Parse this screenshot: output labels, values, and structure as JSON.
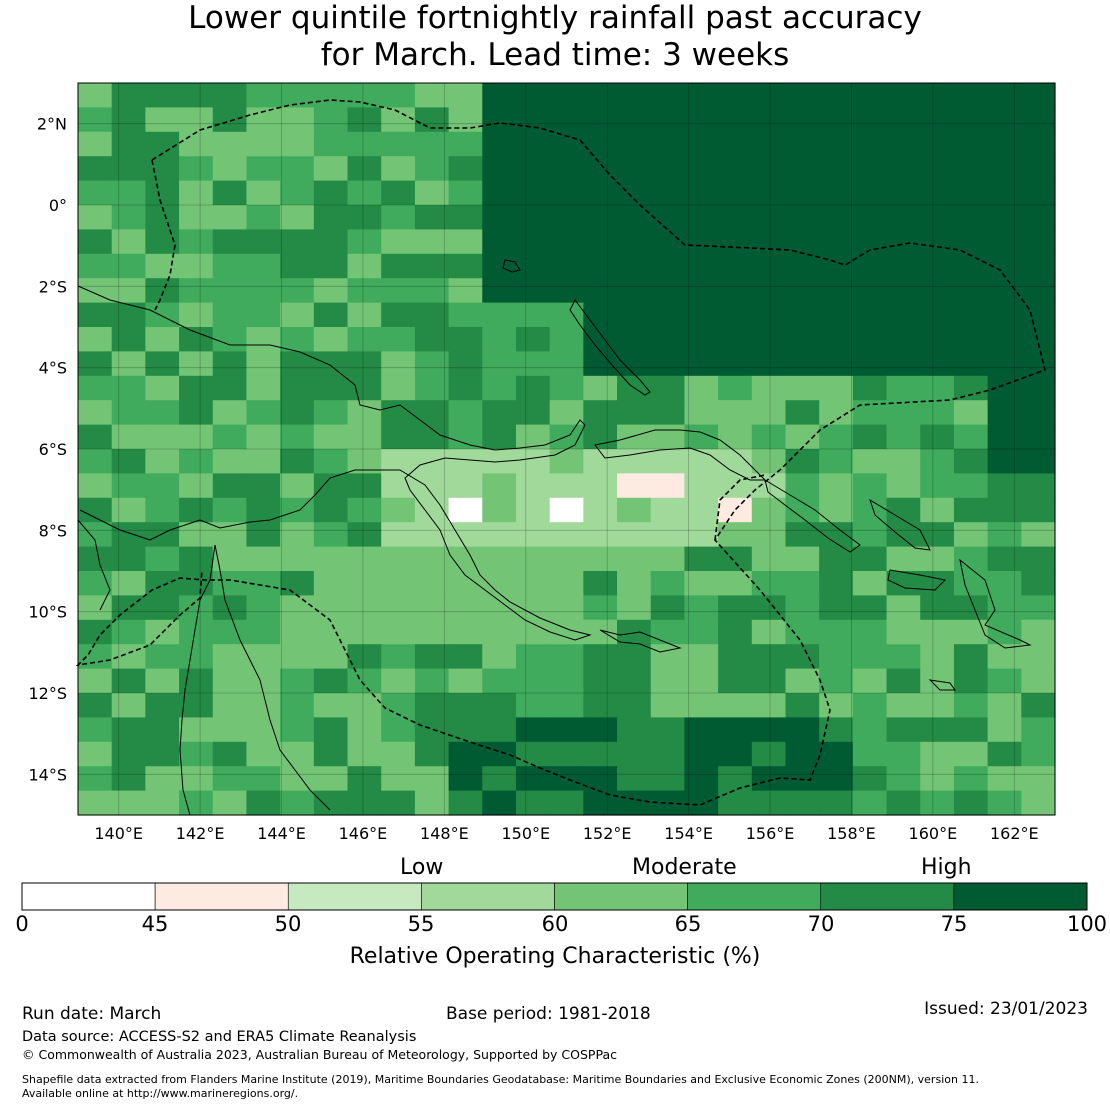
{
  "title": {
    "line1": "Lower quintile fortnightly rainfall past accuracy",
    "line2": "for March. Lead time: 3 weeks"
  },
  "map": {
    "lon_range": [
      139,
      163
    ],
    "lat_range": [
      -15,
      3
    ],
    "lon_ticks": [
      "140°E",
      "142°E",
      "144°E",
      "146°E",
      "148°E",
      "150°E",
      "152°E",
      "154°E",
      "156°E",
      "158°E",
      "160°E",
      "162°E"
    ],
    "lat_ticks": [
      "2°N",
      "0°",
      "2°S",
      "4°S",
      "6°S",
      "8°S",
      "10°S",
      "12°S",
      "14°S"
    ]
  },
  "colorbar": {
    "categories": {
      "low": "Low",
      "moderate": "Moderate",
      "high": "High"
    },
    "tick_labels": [
      "0",
      "45",
      "50",
      "55",
      "60",
      "65",
      "70",
      "75",
      "100"
    ],
    "bins": [
      {
        "range": "0-45",
        "color": "#ffffff"
      },
      {
        "range": "45-50",
        "color": "#fdebe2"
      },
      {
        "range": "50-55",
        "color": "#c7e9c0"
      },
      {
        "range": "55-60",
        "color": "#a1d99b"
      },
      {
        "range": "60-65",
        "color": "#74c476"
      },
      {
        "range": "65-70",
        "color": "#41ab5d"
      },
      {
        "range": "70-75",
        "color": "#238b45"
      },
      {
        "range": "75-100",
        "color": "#005a32"
      }
    ],
    "label": "Relative Operating Characteristic (%)"
  },
  "footer": {
    "run_date": "Run date: March",
    "base_period": "Base period: 1981-2018",
    "issued": "Issued: 23/01/2023",
    "data_source": "Data source: ACCESS-S2 and ERA5 Climate Reanalysis",
    "copyright": "© Commonwealth of Australia 2023, Australian Bureau of Meteorology, Supported by COSPPac",
    "shapefile_line1": "Shapefile data extracted from Flanders Marine Institute (2019), Maritime Boundaries Geodatabase: Maritime Boundaries and Exclusive Economic Zones (200NM), version 11.",
    "shapefile_line2": "Available online at http://www.marineregions.org/."
  }
}
